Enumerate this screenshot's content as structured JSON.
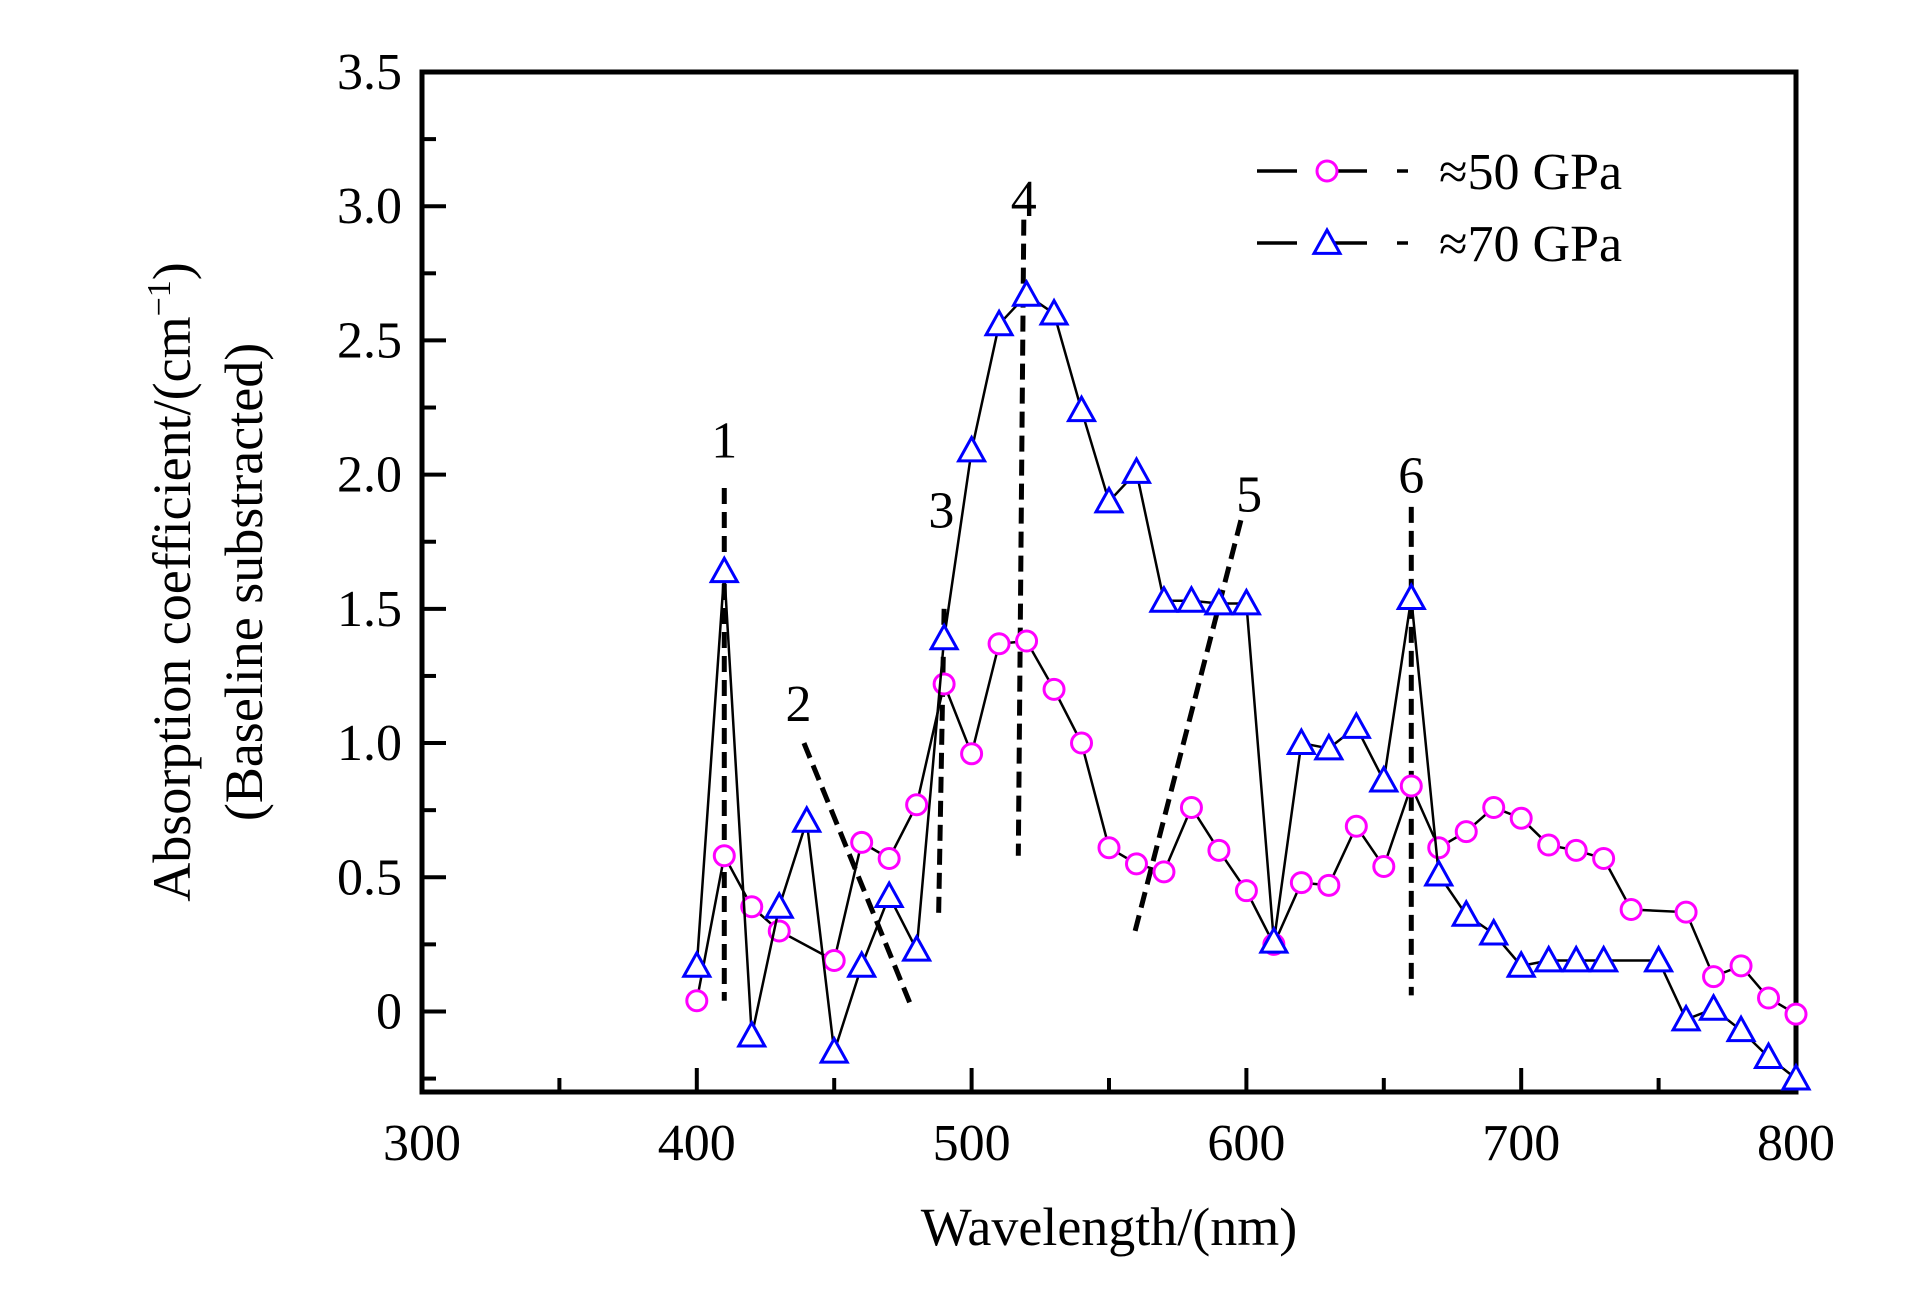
{
  "chart_data": {
    "type": "line",
    "title": "",
    "xlabel": "Wavelength/(nm)",
    "ylabel_line1": "Absorption coefficient/(cm",
    "ylabel_sup": "−1",
    "ylabel_close": ")",
    "ylabel_line2": "(Baseline substracted)",
    "xlim": [
      300,
      800
    ],
    "ylim": [
      -0.3,
      3.5
    ],
    "xticks": [
      300,
      400,
      500,
      600,
      700,
      800
    ],
    "xtick_labels": [
      "300",
      "400",
      "500",
      "600",
      "700",
      "800"
    ],
    "yticks": [
      0,
      0.5,
      1.0,
      1.5,
      2.0,
      2.5,
      3.0,
      3.5
    ],
    "ytick_labels": [
      "0",
      "0.5",
      "1.0",
      "1.5",
      "2.0",
      "2.5",
      "3.0",
      "3.5"
    ],
    "grid": false,
    "legend_position": "top-right",
    "series": [
      {
        "name": "≈50 GPa",
        "marker": "circle",
        "color": "#ff00ff",
        "x": [
          400,
          410,
          420,
          430,
          450,
          460,
          470,
          480,
          490,
          500,
          510,
          520,
          530,
          540,
          550,
          560,
          570,
          580,
          590,
          600,
          610,
          620,
          630,
          640,
          650,
          660,
          670,
          680,
          690,
          700,
          710,
          720,
          730,
          740,
          760,
          770,
          780,
          790,
          800
        ],
        "y": [
          0.04,
          0.58,
          0.39,
          0.3,
          0.19,
          0.63,
          0.57,
          0.77,
          1.22,
          0.96,
          1.37,
          1.38,
          1.2,
          1.0,
          0.61,
          0.55,
          0.52,
          0.76,
          0.6,
          0.45,
          0.25,
          0.48,
          0.47,
          0.69,
          0.54,
          0.84,
          0.61,
          0.67,
          0.76,
          0.72,
          0.62,
          0.6,
          0.57,
          0.38,
          0.37,
          0.13,
          0.17,
          0.05,
          -0.01
        ]
      },
      {
        "name": "≈70 GPa",
        "marker": "triangle",
        "color": "#0000ff",
        "x": [
          400,
          410,
          420,
          430,
          440,
          450,
          460,
          470,
          480,
          490,
          500,
          510,
          520,
          530,
          540,
          550,
          560,
          570,
          580,
          590,
          600,
          610,
          620,
          630,
          640,
          650,
          660,
          670,
          680,
          690,
          700,
          710,
          720,
          730,
          750,
          760,
          770,
          780,
          790,
          800
        ],
        "y": [
          0.17,
          1.64,
          -0.09,
          0.39,
          0.71,
          -0.15,
          0.17,
          0.43,
          0.23,
          1.39,
          2.09,
          2.56,
          2.67,
          2.6,
          2.24,
          1.9,
          2.01,
          1.53,
          1.53,
          1.52,
          1.52,
          0.26,
          1.0,
          0.98,
          1.06,
          0.86,
          1.54,
          0.51,
          0.36,
          0.29,
          0.17,
          0.19,
          0.19,
          0.19,
          0.19,
          -0.03,
          0.01,
          -0.07,
          -0.17,
          -0.25
        ]
      }
    ],
    "annotations": [
      {
        "label": "1",
        "label_at": [
          410,
          2.13
        ],
        "line": [
          [
            410,
            1.95
          ],
          [
            410,
            0.04
          ]
        ]
      },
      {
        "label": "2",
        "label_at": [
          437,
          1.15
        ],
        "line": [
          [
            439,
            1.0
          ],
          [
            478,
            0.02
          ]
        ]
      },
      {
        "label": "3",
        "label_at": [
          489,
          1.87
        ],
        "line": [
          [
            490,
            1.5
          ],
          [
            488,
            0.36
          ]
        ]
      },
      {
        "label": "4",
        "label_at": [
          519,
          3.03
        ],
        "line": [
          [
            519,
            2.95
          ],
          [
            517,
            0.58
          ]
        ]
      },
      {
        "label": "5",
        "label_at": [
          601,
          1.93
        ],
        "line": [
          [
            598,
            1.83
          ],
          [
            559,
            0.28
          ]
        ]
      },
      {
        "label": "6",
        "label_at": [
          660,
          2.0
        ],
        "line": [
          [
            660,
            1.88
          ],
          [
            660,
            0.06
          ]
        ]
      }
    ]
  }
}
